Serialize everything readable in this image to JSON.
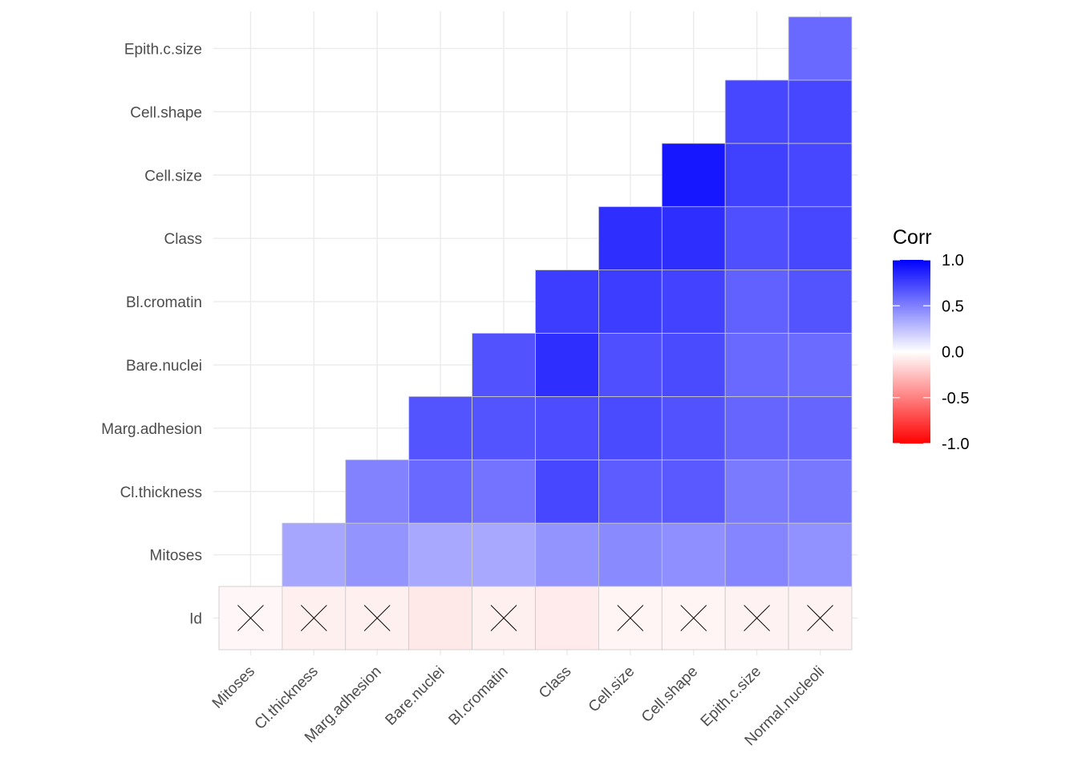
{
  "chart_data": {
    "type": "heatmap",
    "title": "",
    "xlabel": "",
    "ylabel": "",
    "x_categories": [
      "Mitoses",
      "Cl.thickness",
      "Marg.adhesion",
      "Bare.nuclei",
      "Bl.cromatin",
      "Class",
      "Cell.size",
      "Cell.shape",
      "Epith.c.size",
      "Normal.nucleoli"
    ],
    "y_categories": [
      "Id",
      "Mitoses",
      "Cl.thickness",
      "Marg.adhesion",
      "Bare.nuclei",
      "Bl.cromatin",
      "Class",
      "Cell.size",
      "Cell.shape",
      "Epith.c.size"
    ],
    "matrix": [
      [
        -0.03,
        -0.06,
        -0.06,
        -0.09,
        -0.06,
        -0.08,
        -0.04,
        -0.04,
        -0.05,
        -0.05
      ],
      [
        null,
        0.35,
        0.42,
        0.34,
        0.34,
        0.42,
        0.46,
        0.44,
        0.48,
        0.43
      ],
      [
        null,
        null,
        0.49,
        0.59,
        0.55,
        0.72,
        0.64,
        0.65,
        0.52,
        0.53
      ],
      [
        null,
        null,
        null,
        0.67,
        0.67,
        0.7,
        0.71,
        0.68,
        0.6,
        0.6
      ],
      [
        null,
        null,
        null,
        null,
        0.68,
        0.82,
        0.69,
        0.71,
        0.59,
        0.58
      ],
      [
        null,
        null,
        null,
        null,
        null,
        0.76,
        0.76,
        0.74,
        0.62,
        0.67
      ],
      [
        null,
        null,
        null,
        null,
        null,
        null,
        0.82,
        0.82,
        0.69,
        0.72
      ],
      [
        null,
        null,
        null,
        null,
        null,
        null,
        null,
        0.91,
        0.75,
        0.72
      ],
      [
        null,
        null,
        null,
        null,
        null,
        null,
        null,
        null,
        0.72,
        0.72
      ],
      [
        null,
        null,
        null,
        null,
        null,
        null,
        null,
        null,
        null,
        0.59
      ]
    ],
    "insignificant": [
      [
        true,
        true,
        true,
        false,
        true,
        false,
        true,
        true,
        true,
        true
      ],
      [
        false,
        false,
        false,
        false,
        false,
        false,
        false,
        false,
        false,
        false
      ],
      [
        false,
        false,
        false,
        false,
        false,
        false,
        false,
        false,
        false,
        false
      ],
      [
        false,
        false,
        false,
        false,
        false,
        false,
        false,
        false,
        false,
        false
      ],
      [
        false,
        false,
        false,
        false,
        false,
        false,
        false,
        false,
        false,
        false
      ],
      [
        false,
        false,
        false,
        false,
        false,
        false,
        false,
        false,
        false,
        false
      ],
      [
        false,
        false,
        false,
        false,
        false,
        false,
        false,
        false,
        false,
        false
      ],
      [
        false,
        false,
        false,
        false,
        false,
        false,
        false,
        false,
        false,
        false
      ],
      [
        false,
        false,
        false,
        false,
        false,
        false,
        false,
        false,
        false,
        false
      ],
      [
        false,
        false,
        false,
        false,
        false,
        false,
        false,
        false,
        false,
        false
      ]
    ],
    "legend": {
      "title": "Corr",
      "range": [
        -1.0,
        1.0
      ],
      "labels": [
        "1.0",
        "0.5",
        "0.0",
        "-0.5",
        "-1.0"
      ],
      "placement": "right"
    },
    "colors": {
      "low": "#ff0000",
      "mid": "#ffffff",
      "high": "#0000ff"
    },
    "grid": true
  }
}
